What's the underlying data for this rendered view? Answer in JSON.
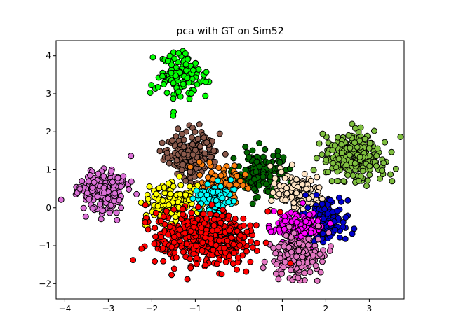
{
  "chart_data": {
    "type": "scatter",
    "title": "pca with GT on Sim52",
    "xlabel": "",
    "ylabel": "",
    "xlim": [
      -4.2,
      3.8
    ],
    "ylim": [
      -2.4,
      4.4
    ],
    "xticks": [
      -4,
      -3,
      -2,
      -1,
      0,
      1,
      2,
      3
    ],
    "yticks": [
      -2,
      -1,
      0,
      1,
      2,
      3,
      4
    ],
    "grid": false,
    "legend": "none",
    "marker_edge_color": "#000000",
    "series": [
      {
        "color": "#7fbf3f",
        "center": [
          2.65,
          1.35
        ],
        "spread": [
          0.34,
          0.32
        ],
        "count": 260
      },
      {
        "color": "#00ff00",
        "center": [
          -1.35,
          3.45
        ],
        "spread": [
          0.28,
          0.3
        ],
        "count": 110
      },
      {
        "color": "#da70d6",
        "center": [
          -3.1,
          0.45
        ],
        "spread": [
          0.28,
          0.3
        ],
        "count": 190
      },
      {
        "color": "#8b5a4c",
        "center": [
          -1.15,
          1.4
        ],
        "spread": [
          0.28,
          0.28
        ],
        "count": 220
      },
      {
        "color": "#006400",
        "center": [
          0.45,
          0.9
        ],
        "spread": [
          0.3,
          0.28
        ],
        "count": 170
      },
      {
        "color": "#ff7f0e",
        "center": [
          -0.35,
          0.65
        ],
        "spread": [
          0.28,
          0.25
        ],
        "count": 90
      },
      {
        "color": "#ffff00",
        "center": [
          -1.5,
          0.1
        ],
        "spread": [
          0.3,
          0.28
        ],
        "count": 160
      },
      {
        "color": "#00ffff",
        "center": [
          -0.6,
          0.25
        ],
        "spread": [
          0.22,
          0.2
        ],
        "count": 90
      },
      {
        "color": "#ffe4c4",
        "center": [
          1.35,
          0.45
        ],
        "spread": [
          0.28,
          0.25
        ],
        "count": 130
      },
      {
        "color": "#0000cd",
        "center": [
          2.0,
          -0.35
        ],
        "spread": [
          0.25,
          0.28
        ],
        "count": 150
      },
      {
        "color": "#ff00ff",
        "center": [
          1.3,
          -0.5
        ],
        "spread": [
          0.25,
          0.25
        ],
        "count": 140
      },
      {
        "color": "#e377c2",
        "center": [
          1.35,
          -1.3
        ],
        "spread": [
          0.3,
          0.3
        ],
        "count": 170
      },
      {
        "color": "#ff0000",
        "center": [
          -0.8,
          -0.8
        ],
        "spread": [
          0.55,
          0.33
        ],
        "count": 480
      }
    ]
  }
}
